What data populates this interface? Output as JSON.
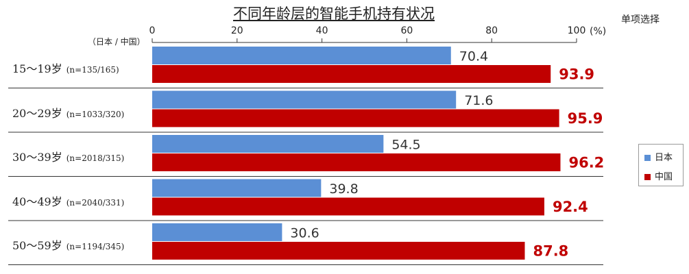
{
  "chart_data": {
    "type": "bar",
    "title": "不同年龄层的智能手机持有状况",
    "note": "单项选择",
    "unit": "(%)",
    "header_label": "（日本 / 中国）",
    "xlim": [
      0,
      100
    ],
    "ticks": [
      "0",
      "20",
      "40",
      "60",
      "80",
      "100"
    ],
    "categories": [
      {
        "age": "15～19岁",
        "n": "(n=135/165)"
      },
      {
        "age": "20～29岁",
        "n": "(n=1033/320)"
      },
      {
        "age": "30～39岁",
        "n": "(n=2018/315)"
      },
      {
        "age": "40～49岁",
        "n": "(n=2040/331)"
      },
      {
        "age": "50～59岁",
        "n": "(n=1194/345)"
      }
    ],
    "series": [
      {
        "name": "日本",
        "color": "#5b8fd5",
        "values": [
          70.4,
          71.6,
          54.5,
          39.8,
          30.6
        ]
      },
      {
        "name": "中国",
        "color": "#c00000",
        "values": [
          93.9,
          95.9,
          96.2,
          92.4,
          87.8
        ]
      }
    ],
    "legend": "right"
  }
}
